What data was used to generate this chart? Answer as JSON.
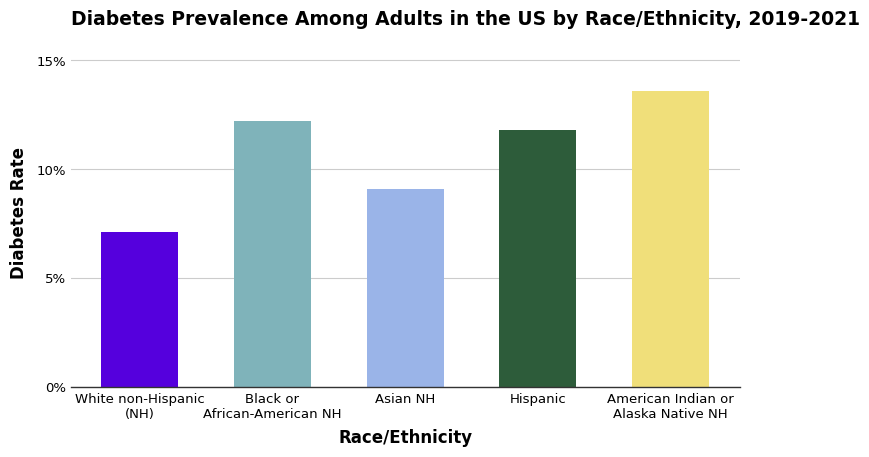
{
  "categories": [
    "White non-Hispanic\n(NH)",
    "Black or\nAfrican-American NH",
    "Asian NH",
    "Hispanic",
    "American Indian or\nAlaska Native NH"
  ],
  "values": [
    7.1,
    12.2,
    9.1,
    11.8,
    13.6
  ],
  "bar_colors": [
    "#5500dd",
    "#7fb3ba",
    "#9ab4e8",
    "#2d5c3a",
    "#f0df7a"
  ],
  "title": "Diabetes Prevalence Among Adults in the US by Race/Ethnicity, 2019-2021",
  "xlabel": "Race/Ethnicity",
  "ylabel": "Diabetes Rate",
  "ylim": [
    0,
    16
  ],
  "yticks": [
    0,
    5,
    10,
    15
  ],
  "ytick_labels": [
    "0%",
    "5%",
    "10%",
    "15%"
  ],
  "background_color": "#ffffff",
  "title_fontsize": 13.5,
  "label_fontsize": 12,
  "tick_fontsize": 9.5,
  "grid_color": "#cccccc",
  "bar_width": 0.58
}
